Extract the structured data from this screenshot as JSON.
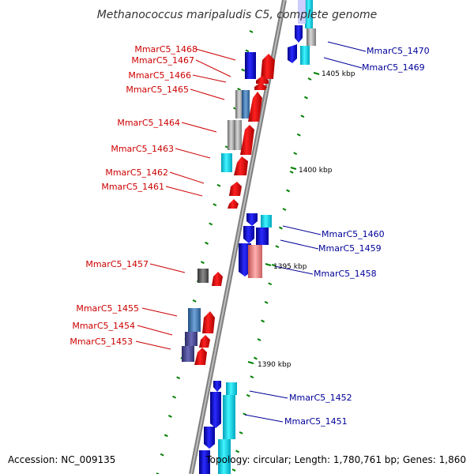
{
  "title": "Methanococcus maripaludis C5, complete genome",
  "accession": "Accession: NC_009135",
  "topology": "Topology: circular; Length: 1,780,761 bp; Genes: 1,860",
  "colors": {
    "forward_label": "#cc0000",
    "reverse_label": "#000099",
    "forward_gene": "#ff0000",
    "reverse_gene": "#0000ff",
    "cyan_gene": "#00e5ff",
    "backbone": "#808080",
    "tick": "#008000"
  },
  "scale_labels": [
    "1405 kbp",
    "1400 kbp",
    "1395 kbp",
    "1390 kbp"
  ],
  "left_labels": [
    "MmarC5_1468",
    "MmarC5_1467",
    "MmarC5_1466",
    "MmarC5_1465",
    "MmarC5_1464",
    "MmarC5_1463",
    "MmarC5_1462",
    "MmarC5_1461",
    "MmarC5_1457",
    "MmarC5_1455",
    "MmarC5_1454",
    "MmarC5_1453"
  ],
  "right_labels": [
    "MmarC5_1470",
    "MmarC5_1469",
    "MmarC5_1460",
    "MmarC5_1459",
    "MmarC5_1458",
    "MmarC5_1452",
    "MmarC5_1451"
  ]
}
